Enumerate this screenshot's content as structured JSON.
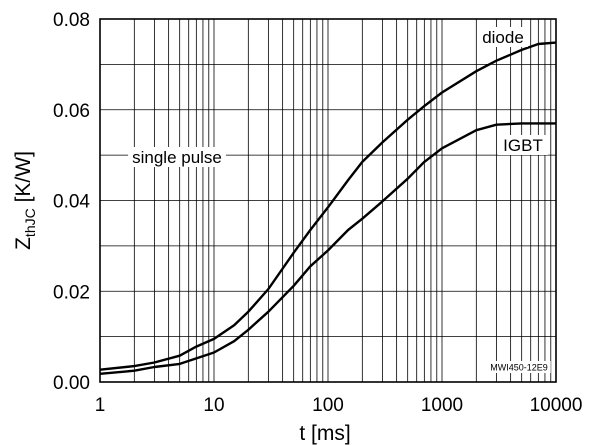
{
  "chart_data": {
    "type": "line",
    "x_scale": "log",
    "xlim": [
      1,
      10000
    ],
    "ylim": [
      0,
      0.08
    ],
    "grid": true,
    "xlabel": {
      "symbol": "t",
      "unit": "[ms]"
    },
    "ylabel": {
      "symbol": "Z",
      "subscript": "thJC",
      "unit": "[K/W]"
    },
    "x_ticks": [
      1,
      10,
      100,
      1000,
      10000
    ],
    "x_tick_labels": [
      "1",
      "10",
      "100",
      "1000",
      "10000"
    ],
    "y_ticks": [
      0,
      0.02,
      0.04,
      0.06,
      0.08
    ],
    "y_tick_labels": [
      "0.00",
      "0.02",
      "0.04",
      "0.06",
      "0.08"
    ],
    "series": [
      {
        "name": "diode",
        "x": [
          1,
          2,
          3,
          5,
          7,
          10,
          15,
          20,
          30,
          50,
          70,
          100,
          150,
          200,
          300,
          500,
          700,
          1000,
          2000,
          3000,
          5000,
          7000,
          10000
        ],
        "y": [
          0.0027,
          0.0035,
          0.0043,
          0.0058,
          0.0078,
          0.0095,
          0.0125,
          0.0155,
          0.0205,
          0.0285,
          0.0335,
          0.0385,
          0.0445,
          0.0485,
          0.0528,
          0.0578,
          0.0608,
          0.0638,
          0.0685,
          0.0708,
          0.0732,
          0.0745,
          0.0748
        ]
      },
      {
        "name": "IGBT",
        "x": [
          1,
          2,
          3,
          5,
          7,
          10,
          15,
          20,
          30,
          50,
          70,
          100,
          150,
          200,
          300,
          500,
          700,
          1000,
          2000,
          3000,
          5000,
          7000,
          10000
        ],
        "y": [
          0.0018,
          0.0025,
          0.0033,
          0.004,
          0.0052,
          0.0065,
          0.009,
          0.0115,
          0.0155,
          0.0212,
          0.0255,
          0.029,
          0.0335,
          0.036,
          0.0398,
          0.0448,
          0.0485,
          0.0515,
          0.0555,
          0.0567,
          0.057,
          0.057,
          0.057
        ]
      }
    ],
    "annotations": {
      "single_pulse": "single pulse",
      "figure_code": "MWI450-12E9"
    }
  }
}
